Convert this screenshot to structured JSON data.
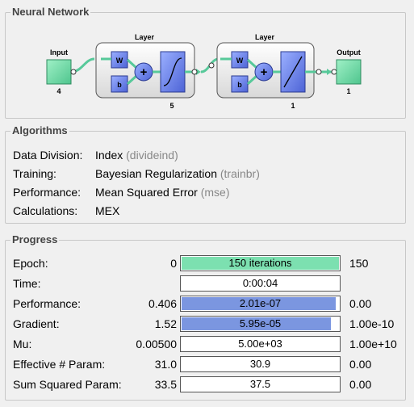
{
  "neural_network": {
    "title": "Neural Network",
    "input": {
      "label": "Input",
      "size": "4"
    },
    "hidden_layer": {
      "label": "Layer",
      "w": "W",
      "b": "b",
      "size": "5"
    },
    "output_layer": {
      "label": "Layer",
      "w": "W",
      "b": "b",
      "size": "1"
    },
    "output": {
      "label": "Output",
      "size": "1"
    },
    "plus_symbol": "+"
  },
  "algorithms": {
    "title": "Algorithms",
    "rows": [
      {
        "label": "Data Division:",
        "value": "Index",
        "sub": "(divideind)"
      },
      {
        "label": "Training:",
        "value": "Bayesian Regularization",
        "sub": "(trainbr)"
      },
      {
        "label": "Performance:",
        "value": "Mean Squared Error",
        "sub": "(mse)"
      },
      {
        "label": "Calculations:",
        "value": "MEX",
        "sub": ""
      }
    ]
  },
  "progress": {
    "title": "Progress",
    "rows": [
      {
        "label": "Epoch:",
        "min": "0",
        "value": "150 iterations",
        "max": "150",
        "fill": 1.0,
        "color": "#7ce0b0"
      },
      {
        "label": "Time:",
        "min": "",
        "value": "0:00:04",
        "max": "",
        "fill": 0,
        "color": "#ffffff"
      },
      {
        "label": "Performance:",
        "min": "0.406",
        "value": "2.01e-07",
        "max": "0.00",
        "fill": 0.98,
        "color": "#7b96e0"
      },
      {
        "label": "Gradient:",
        "min": "1.52",
        "value": "5.95e-05",
        "max": "1.00e-10",
        "fill": 0.95,
        "color": "#7b96e0"
      },
      {
        "label": "Mu:",
        "min": "0.00500",
        "value": "5.00e+03",
        "max": "1.00e+10",
        "fill": 0,
        "color": "#ffffff"
      },
      {
        "label": "Effective # Param:",
        "min": "31.0",
        "value": "30.9",
        "max": "0.00",
        "fill": 0,
        "color": "#ffffff"
      },
      {
        "label": "Sum Squared Param:",
        "min": "33.5",
        "value": "37.5",
        "max": "0.00",
        "fill": 0,
        "color": "#ffffff"
      }
    ]
  }
}
